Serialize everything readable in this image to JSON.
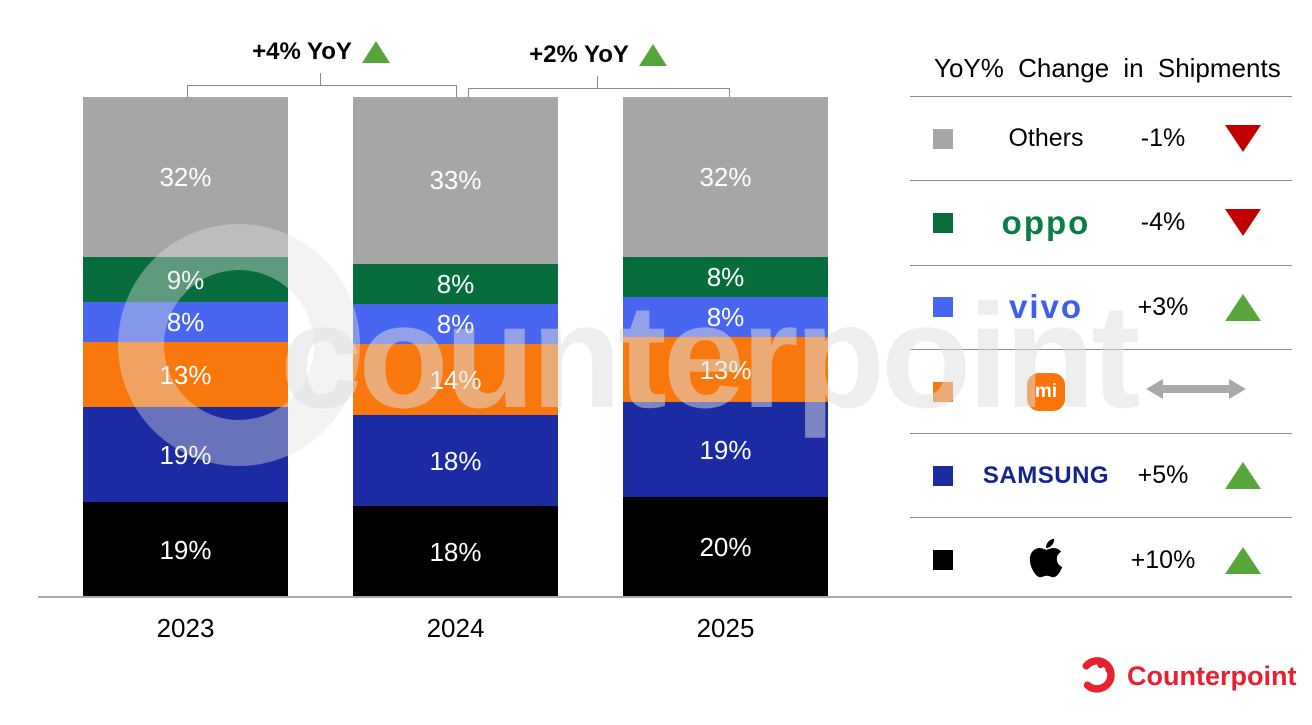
{
  "watermark": {
    "text": "counterpoint"
  },
  "chart_data": {
    "type": "bar",
    "stacked": true,
    "categories": [
      "2023",
      "2024",
      "2025"
    ],
    "series": [
      {
        "name": "Apple",
        "color": "#000000",
        "values": [
          19,
          18,
          20
        ]
      },
      {
        "name": "Samsung",
        "color": "#1a2ba4",
        "values": [
          19,
          18,
          19
        ]
      },
      {
        "name": "Xiaomi",
        "color": "#f8780e",
        "values": [
          13,
          14,
          13
        ]
      },
      {
        "name": "vivo",
        "color": "#4866f0",
        "values": [
          8,
          8,
          8
        ]
      },
      {
        "name": "OPPO",
        "color": "#076d3c",
        "values": [
          9,
          8,
          8
        ]
      },
      {
        "name": "Others",
        "color": "#a6a6a6",
        "values": [
          32,
          33,
          32
        ]
      }
    ],
    "value_suffix": "%",
    "ylim": [
      0,
      100
    ],
    "grid": false,
    "annotations": [
      {
        "label": "+4% YoY",
        "direction": "up",
        "from": "2023",
        "to": "2024"
      },
      {
        "label": "+2% YoY",
        "direction": "up",
        "from": "2024",
        "to": "2025"
      }
    ]
  },
  "legend": {
    "title": "YoY% Change in Shipments",
    "rows": [
      {
        "brand": "Others",
        "label": "Others",
        "change": "-1%",
        "direction": "down"
      },
      {
        "brand": "OPPO",
        "logo_text": "oppo",
        "change": "-4%",
        "direction": "down"
      },
      {
        "brand": "vivo",
        "logo_text": "vivo",
        "change": "+3%",
        "direction": "up"
      },
      {
        "brand": "Xiaomi",
        "logo_text": "mi",
        "change": "",
        "direction": "flat"
      },
      {
        "brand": "Samsung",
        "logo_text": "SAMSUNG",
        "change": "+5%",
        "direction": "up"
      },
      {
        "brand": "Apple",
        "change": "+10%",
        "direction": "up"
      }
    ]
  },
  "footer": {
    "logo_text": "Counterpoint"
  },
  "colors": {
    "up_triangle": "#57a639",
    "down_triangle": "#c00000",
    "flat_arrow": "#a9a9a9",
    "bracket_line": "#8a8a8a",
    "counterpoint_red": "#e8212e"
  }
}
